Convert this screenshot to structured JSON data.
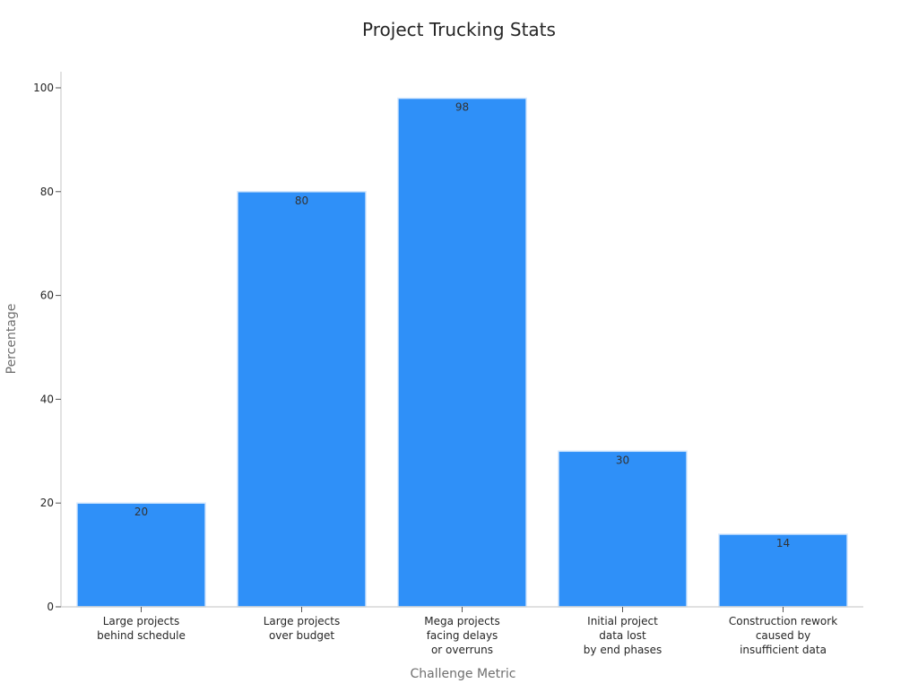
{
  "chart_data": {
    "type": "bar",
    "title": "Project Trucking Stats",
    "xlabel": "Challenge Metric",
    "ylabel": "Percentage",
    "categories": [
      [
        "Large projects",
        "behind schedule"
      ],
      [
        "Large projects",
        "over budget"
      ],
      [
        "Mega projects",
        "facing delays",
        "or overruns"
      ],
      [
        "Initial project",
        "data lost",
        "by end phases"
      ],
      [
        "Construction rework",
        "caused by",
        "insufficient data"
      ]
    ],
    "values": [
      20,
      80,
      98,
      30,
      14
    ],
    "ylim": [
      0,
      100
    ],
    "yticks": [
      0,
      20,
      40,
      60,
      80,
      100
    ],
    "bar_color": "#2f90f8",
    "bar_edge_color": "#d7e9fd",
    "grid": false,
    "legend": "none",
    "data_labels": "inside-top"
  }
}
